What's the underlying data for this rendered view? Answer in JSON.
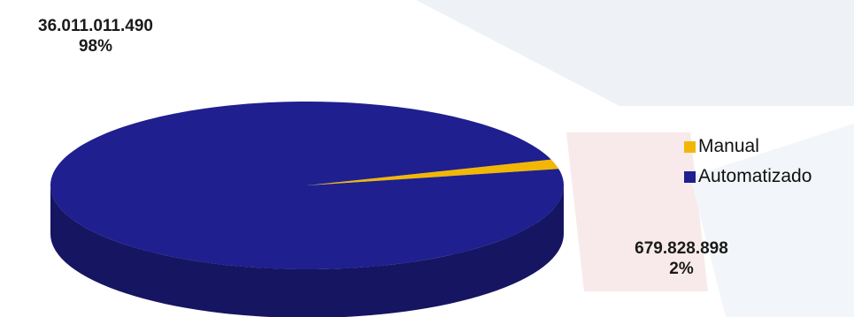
{
  "chart_data": {
    "type": "pie",
    "style": "3d",
    "slices": [
      {
        "name": "Manual",
        "value": 679828898,
        "percent": 2,
        "color": "#F2B705",
        "value_label": "679.828.898",
        "percent_label": "2%"
      },
      {
        "name": "Automatizado",
        "value": 36011011490,
        "percent": 98,
        "color": "#1F1F8F",
        "value_label": "36.011.011.490",
        "percent_label": "98%"
      }
    ],
    "legend": {
      "position": "right",
      "entries": [
        "Manual",
        "Automatizado"
      ]
    }
  },
  "colors": {
    "manual": "#F2B705",
    "automatizado": "#1F1F8F",
    "automatizado_side": "#151565"
  }
}
